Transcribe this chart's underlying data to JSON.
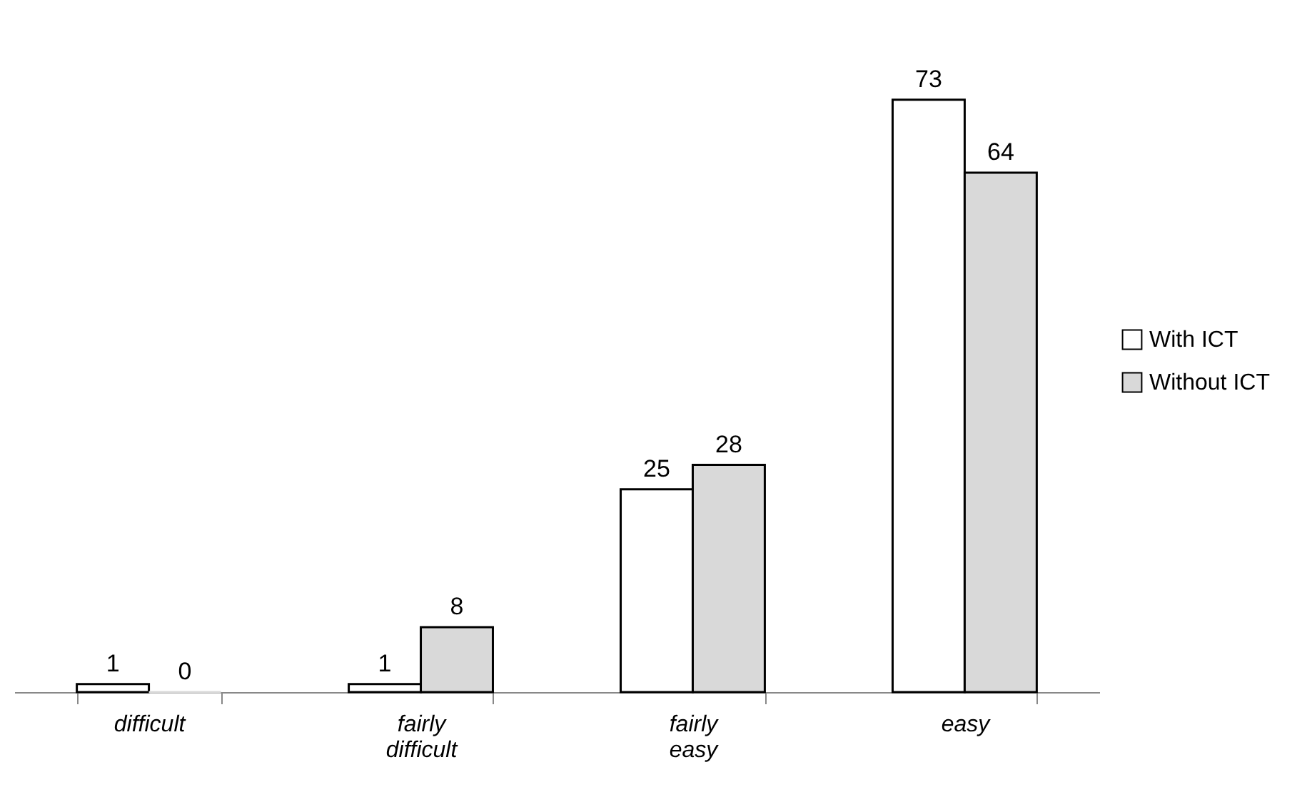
{
  "chart_data": {
    "type": "bar",
    "categories": [
      "difficult",
      "fairly difficult",
      "fairly easy",
      "easy"
    ],
    "series": [
      {
        "name": "With ICT",
        "color": "#ffffff",
        "values": [
          1,
          1,
          25,
          73
        ]
      },
      {
        "name": "Without ICT",
        "color": "#d9d9d9",
        "values": [
          0,
          8,
          28,
          64
        ]
      }
    ],
    "data_labels": true,
    "legend": "right",
    "grid": false,
    "tick_labels": "x"
  }
}
